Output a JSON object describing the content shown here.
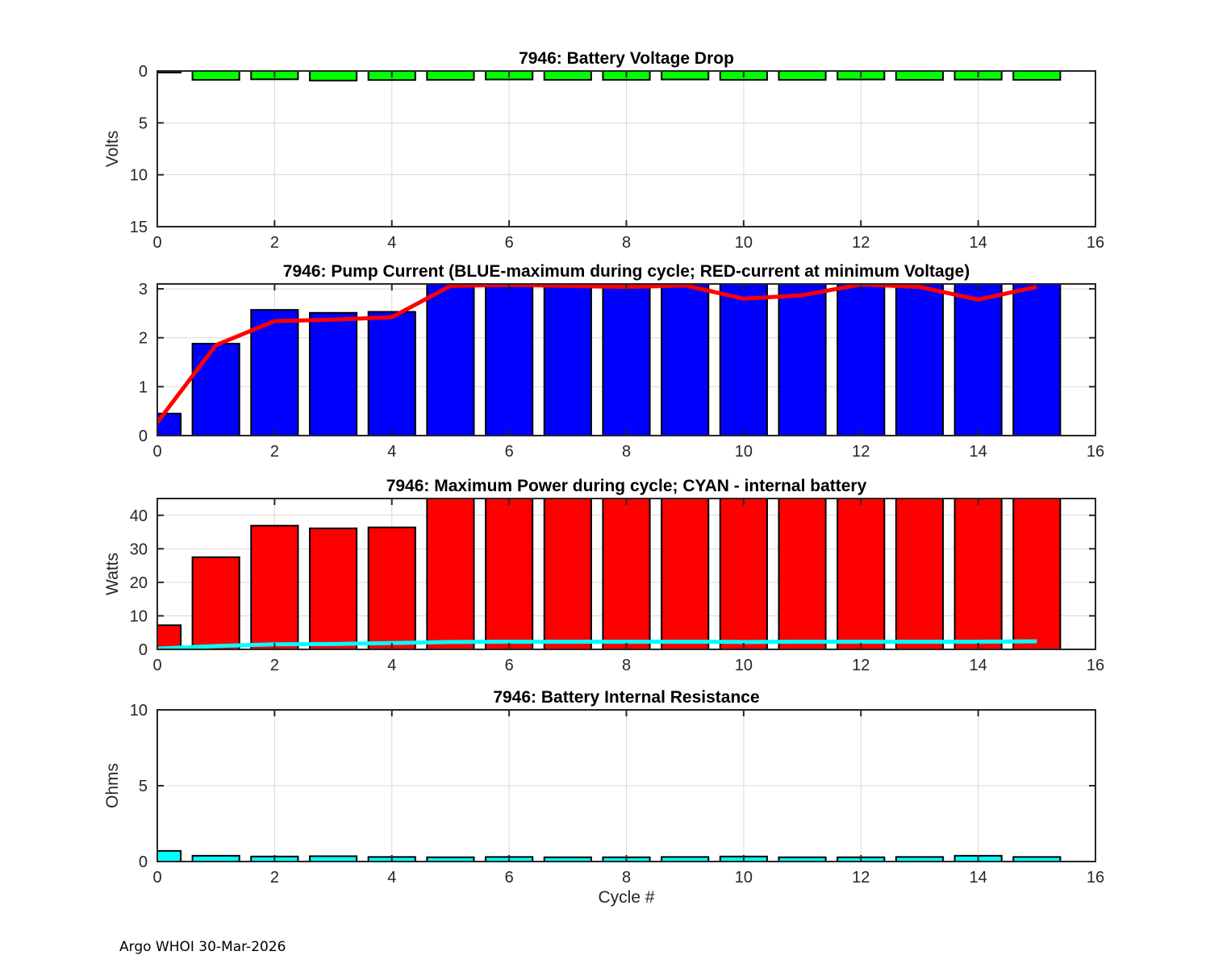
{
  "figure": {
    "footer": "Argo WHOI 30-Mar-2026",
    "background": "#ffffff",
    "axis_color": "#262626",
    "grid_color": "#d9d9d9",
    "bar_edge_color": "#000000"
  },
  "chart_data": [
    {
      "type": "bar",
      "title": "7946: Battery Voltage Drop",
      "ylabel": "Volts",
      "xlabel": "",
      "ylim": [
        0,
        15
      ],
      "y_reversed": true,
      "yticks": [
        0,
        5,
        10,
        15
      ],
      "xlim": [
        0,
        16
      ],
      "xticks": [
        0,
        2,
        4,
        6,
        8,
        10,
        12,
        14,
        16
      ],
      "x": [
        0,
        1,
        2,
        3,
        4,
        5,
        6,
        7,
        8,
        9,
        10,
        11,
        12,
        13,
        14,
        15
      ],
      "bar_color": "#00ff00",
      "values": [
        0.15,
        0.85,
        0.8,
        0.92,
        0.87,
        0.85,
        0.82,
        0.85,
        0.85,
        0.82,
        0.85,
        0.85,
        0.82,
        0.85,
        0.83,
        0.85
      ],
      "grid": true,
      "legend": null
    },
    {
      "type": "bar+line",
      "title": "7946: Pump Current (BLUE-maximum during cycle; RED-current at minimum Voltage)",
      "ylabel": "",
      "xlabel": "",
      "ylim": [
        0,
        3.1
      ],
      "y_reversed": false,
      "yticks": [
        0,
        1,
        2,
        3
      ],
      "xlim": [
        0,
        16
      ],
      "xticks": [
        0,
        2,
        4,
        6,
        8,
        10,
        12,
        14,
        16
      ],
      "x": [
        0,
        1,
        2,
        3,
        4,
        5,
        6,
        7,
        8,
        9,
        10,
        11,
        12,
        13,
        14,
        15
      ],
      "bar_color": "#0000ff",
      "values": [
        0.45,
        1.88,
        2.57,
        2.51,
        2.53,
        3.1,
        3.1,
        3.1,
        3.1,
        3.1,
        3.1,
        3.1,
        3.1,
        3.1,
        3.1,
        3.1
      ],
      "line": {
        "name": "current at minimum Voltage",
        "color": "#ff0000",
        "values": [
          0.27,
          1.85,
          2.34,
          2.37,
          2.42,
          3.06,
          3.08,
          3.06,
          3.04,
          3.07,
          2.8,
          2.87,
          3.09,
          3.04,
          2.78,
          3.04
        ]
      },
      "grid": true,
      "legend": null
    },
    {
      "type": "bar+line",
      "title": "7946: Maximum Power during cycle; CYAN - internal battery",
      "ylabel": "Watts",
      "xlabel": "",
      "ylim": [
        0,
        45
      ],
      "y_reversed": false,
      "yticks": [
        0,
        10,
        20,
        30,
        40
      ],
      "xlim": [
        0,
        16
      ],
      "xticks": [
        0,
        2,
        4,
        6,
        8,
        10,
        12,
        14,
        16
      ],
      "x": [
        0,
        1,
        2,
        3,
        4,
        5,
        6,
        7,
        8,
        9,
        10,
        11,
        12,
        13,
        14,
        15
      ],
      "bar_color": "#ff0000",
      "values": [
        7.2,
        27.5,
        36.9,
        36.1,
        36.4,
        45,
        45,
        45,
        45,
        45,
        45,
        45,
        45,
        45,
        45,
        45
      ],
      "line": {
        "name": "internal battery",
        "color": "#00ffff",
        "values": [
          0.2,
          1.0,
          1.5,
          1.6,
          1.9,
          2.2,
          2.3,
          2.3,
          2.3,
          2.3,
          2.2,
          2.3,
          2.3,
          2.3,
          2.3,
          2.4
        ]
      },
      "grid": true,
      "legend": null
    },
    {
      "type": "bar",
      "title": "7946: Battery Internal Resistance",
      "ylabel": "Ohms",
      "xlabel": "Cycle #",
      "ylim": [
        0,
        10
      ],
      "y_reversed": false,
      "yticks": [
        0,
        5,
        10
      ],
      "xlim": [
        0,
        16
      ],
      "xticks": [
        0,
        2,
        4,
        6,
        8,
        10,
        12,
        14,
        16
      ],
      "x": [
        0,
        1,
        2,
        3,
        4,
        5,
        6,
        7,
        8,
        9,
        10,
        11,
        12,
        13,
        14,
        15
      ],
      "bar_color": "#00ffff",
      "values": [
        0.7,
        0.38,
        0.33,
        0.35,
        0.3,
        0.28,
        0.3,
        0.28,
        0.28,
        0.3,
        0.33,
        0.28,
        0.28,
        0.3,
        0.38,
        0.3
      ],
      "grid": true,
      "legend": null
    }
  ]
}
